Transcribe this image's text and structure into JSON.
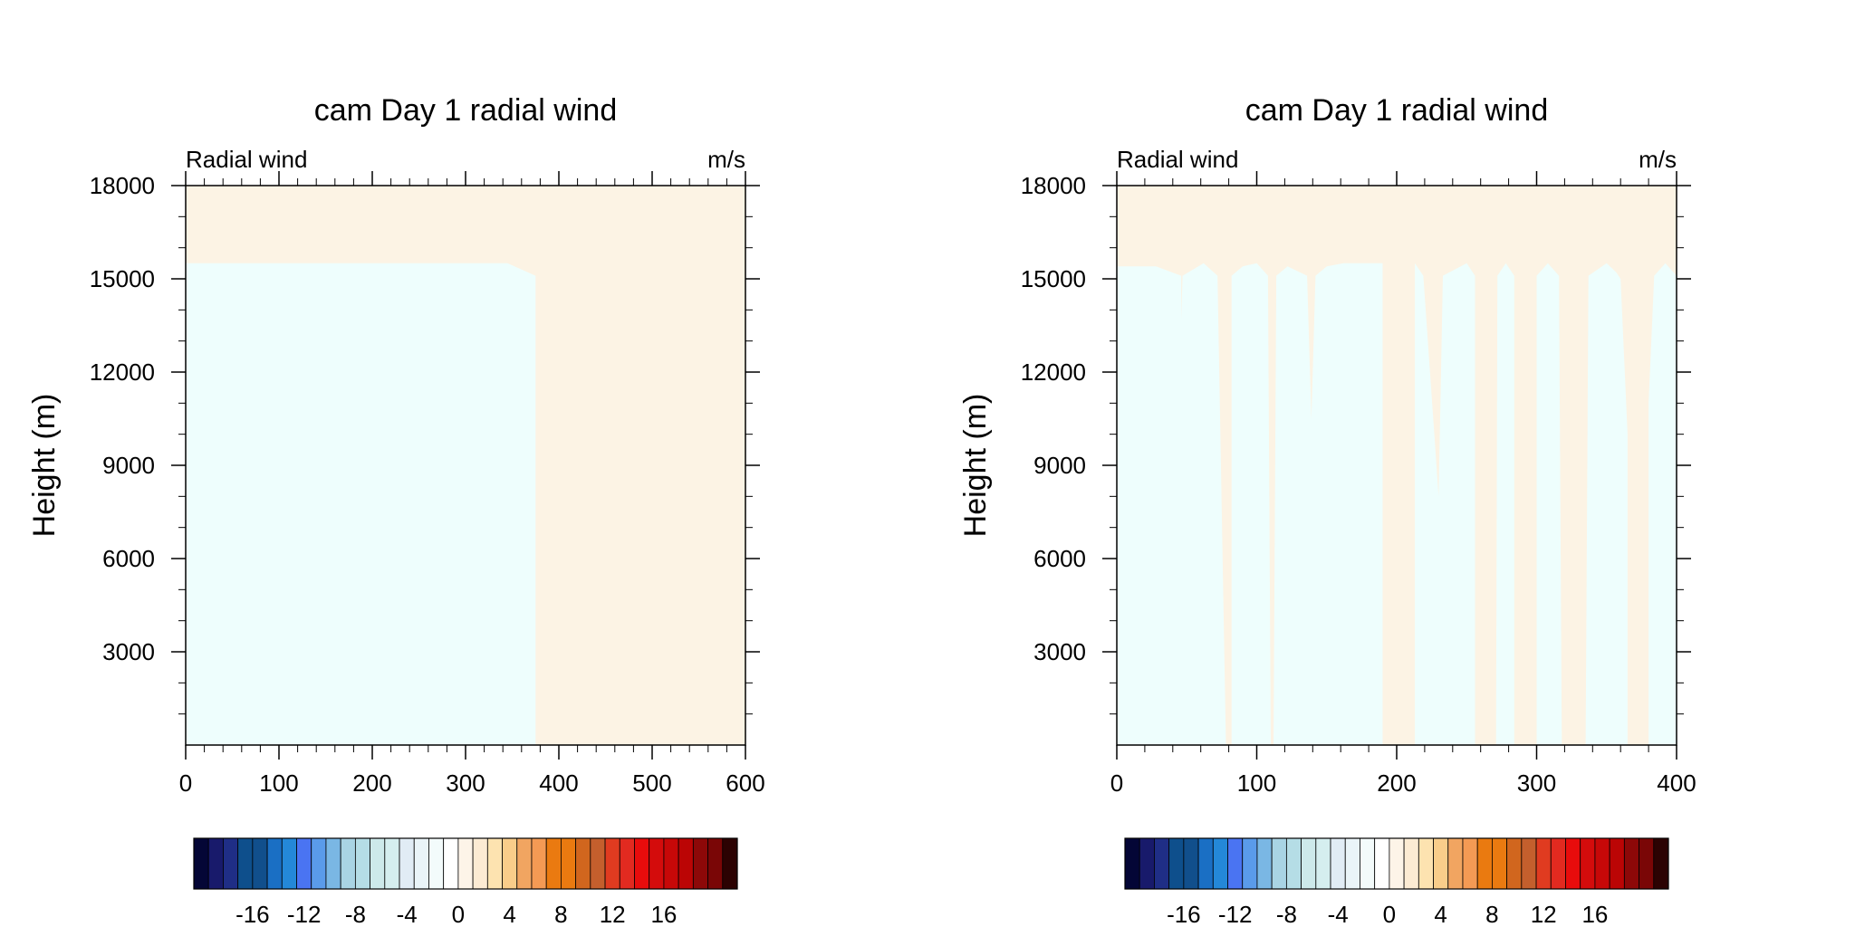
{
  "colors": {
    "negative_fill": "#eefefd",
    "positive_fill": "#fcf3e4",
    "axis": "#000000"
  },
  "colorbar": {
    "colors": [
      "#040636",
      "#181a6b",
      "#1f2e86",
      "#0e4f8c",
      "#114f8c",
      "#1a6fc4",
      "#2488d8",
      "#4a74f2",
      "#5a9bea",
      "#7ab7e4",
      "#a9d4e4",
      "#b5dde6",
      "#cde9ea",
      "#d5eeef",
      "#e1ecf5",
      "#eaf4f8",
      "#f3fbfb",
      "#ffffff",
      "#fdf4e8",
      "#fcebd3",
      "#fde3b0",
      "#f9cd8a",
      "#f1a561",
      "#f49a54",
      "#ea7a10",
      "#ea7a10",
      "#d1661e",
      "#c45f2d",
      "#e03b20",
      "#e22a20",
      "#e80c0c",
      "#d40c0c",
      "#c70808",
      "#bb0505",
      "#8d0808",
      "#7a0606",
      "#2c0202"
    ],
    "tick_labels": [
      "-16",
      "-12",
      "-8",
      "-4",
      "0",
      "4",
      "8",
      "12",
      "16"
    ]
  },
  "chart_data": [
    {
      "type": "filled-contour",
      "title": "cam Day 1 radial wind",
      "left_string": "Radial wind",
      "right_string": "m/s",
      "xlabel": "",
      "ylabel": "Height (m)",
      "xlim": [
        0,
        600
      ],
      "ylim": [
        0,
        18000
      ],
      "xticks": [
        0,
        100,
        200,
        300,
        400,
        500,
        600
      ],
      "xtick_labels": [
        "0",
        "100",
        "200",
        "300",
        "400",
        "500",
        "600"
      ],
      "yticks": [
        3000,
        6000,
        9000,
        12000,
        15000,
        18000
      ],
      "ytick_labels": [
        "3000",
        "6000",
        "9000",
        "12000",
        "15000",
        "18000"
      ],
      "x_minor_step": 20,
      "y_minor_step": 1000,
      "regions": [
        {
          "level": "negative",
          "points": [
            [
              0,
              0
            ],
            [
              0,
              15500
            ],
            [
              345,
              15500
            ],
            [
              375,
              15100
            ],
            [
              375,
              0
            ]
          ]
        }
      ]
    },
    {
      "type": "filled-contour",
      "title": "cam Day 1 radial wind",
      "left_string": "Radial wind",
      "right_string": "m/s",
      "xlabel": "",
      "ylabel": "Height (m)",
      "xlim": [
        0,
        400
      ],
      "ylim": [
        0,
        18000
      ],
      "xticks": [
        0,
        100,
        200,
        300,
        400
      ],
      "xtick_labels": [
        "0",
        "100",
        "200",
        "300",
        "400"
      ],
      "yticks": [
        3000,
        6000,
        9000,
        12000,
        15000,
        18000
      ],
      "ytick_labels": [
        "3000",
        "6000",
        "9000",
        "12000",
        "15000",
        "18000"
      ],
      "x_minor_step": 20,
      "y_minor_step": 1000,
      "regions": [
        {
          "level": "negative",
          "points": [
            [
              0,
              0
            ],
            [
              0,
              15400
            ],
            [
              28,
              15400
            ],
            [
              46,
              15100
            ],
            [
              46,
              13700
            ],
            [
              47,
              15100
            ],
            [
              62,
              15500
            ],
            [
              72,
              15100
            ],
            [
              78,
              0
            ]
          ]
        },
        {
          "level": "negative",
          "points": [
            [
              82,
              0
            ],
            [
              82,
              15100
            ],
            [
              90,
              15400
            ],
            [
              100,
              15500
            ],
            [
              108,
              15100
            ],
            [
              110,
              0
            ]
          ]
        },
        {
          "level": "negative",
          "points": [
            [
              112,
              0
            ],
            [
              114,
              15100
            ],
            [
              122,
              15400
            ],
            [
              136,
              15100
            ],
            [
              139,
              10500
            ],
            [
              142,
              15100
            ],
            [
              150,
              15400
            ],
            [
              162,
              15500
            ],
            [
              190,
              15500
            ],
            [
              190,
              0
            ]
          ]
        },
        {
          "level": "negative",
          "points": [
            [
              213,
              0
            ],
            [
              213,
              15500
            ],
            [
              219,
              15100
            ],
            [
              230,
              8000
            ],
            [
              233,
              15100
            ],
            [
              250,
              15500
            ],
            [
              256,
              15100
            ],
            [
              256,
              0
            ]
          ]
        },
        {
          "level": "negative",
          "points": [
            [
              271,
              0
            ],
            [
              272,
              15100
            ],
            [
              278,
              15500
            ],
            [
              284,
              15100
            ],
            [
              284,
              0
            ]
          ]
        },
        {
          "level": "negative",
          "points": [
            [
              300,
              0
            ],
            [
              300,
              15100
            ],
            [
              308,
              15500
            ],
            [
              316,
              15100
            ],
            [
              318,
              0
            ]
          ]
        },
        {
          "level": "negative",
          "points": [
            [
              335,
              0
            ],
            [
              337,
              15100
            ],
            [
              350,
              15500
            ],
            [
              357,
              15200
            ],
            [
              360,
              15000
            ],
            [
              365,
              10000
            ],
            [
              365,
              0
            ]
          ]
        },
        {
          "level": "negative",
          "points": [
            [
              380,
              0
            ],
            [
              380,
              11000
            ],
            [
              384,
              15100
            ],
            [
              392,
              15500
            ],
            [
              400,
              15100
            ],
            [
              400,
              0
            ]
          ]
        }
      ]
    }
  ]
}
